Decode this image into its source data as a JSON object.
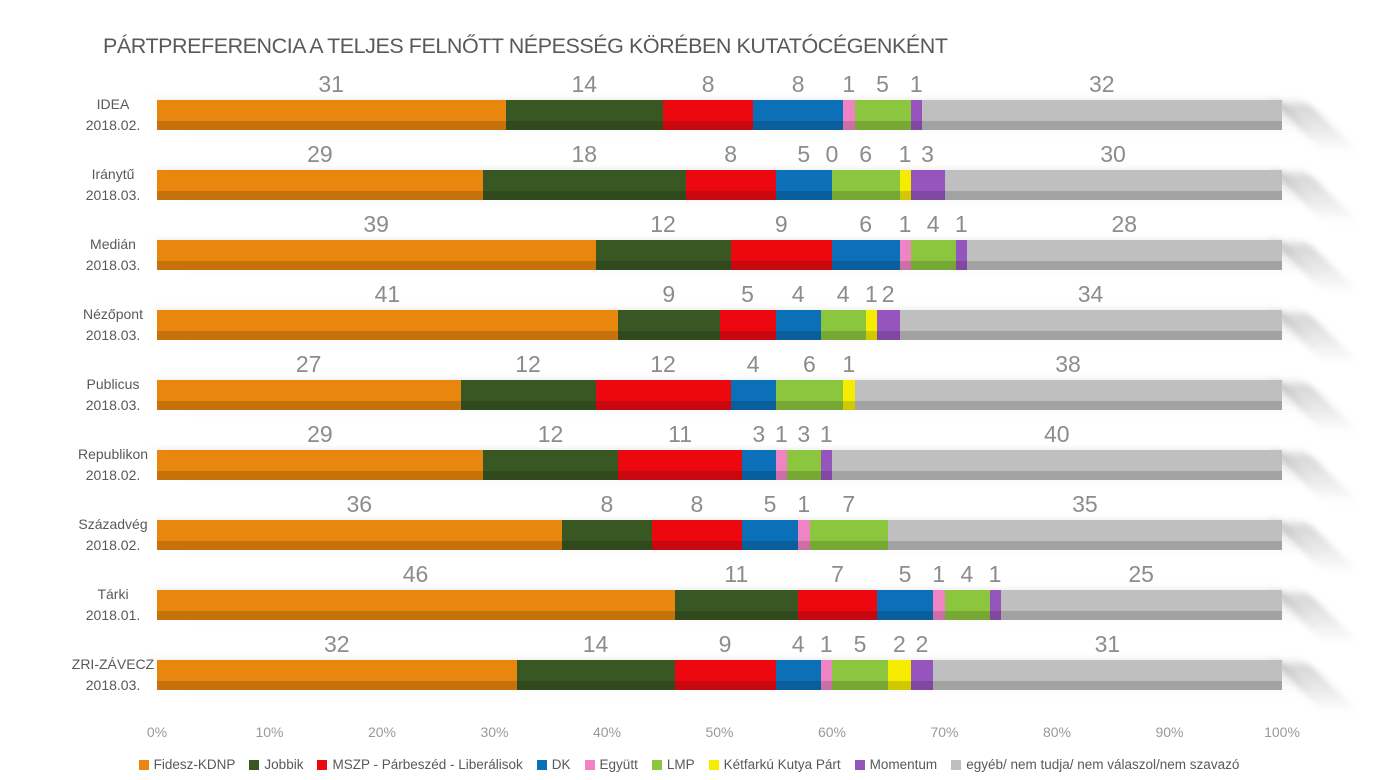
{
  "chart_data": {
    "type": "bar",
    "orientation": "horizontal",
    "stacked": true,
    "unit": "percent",
    "title": "PÁRTPREFERENCIA A TELJES FELNŐTT NÉPESSÉG KÖRÉBEN KUTATÓCÉGENKÉNT",
    "x_axis": {
      "min": 0,
      "max": 100,
      "tick_labels": [
        "0%",
        "10%",
        "20%",
        "30%",
        "40%",
        "50%",
        "60%",
        "70%",
        "80%",
        "90%",
        "100%"
      ],
      "gridlines": false
    },
    "categories": [
      {
        "name": "IDEA",
        "date": "2018.02."
      },
      {
        "name": "Iránytű",
        "date": "2018.03."
      },
      {
        "name": "Medián",
        "date": "2018.03."
      },
      {
        "name": "Nézőpont",
        "date": "2018.03."
      },
      {
        "name": "Publicus",
        "date": "2018.03."
      },
      {
        "name": "Republikon",
        "date": "2018.02."
      },
      {
        "name": "Századvég",
        "date": "2018.02."
      },
      {
        "name": "Tárki",
        "date": "2018.01."
      },
      {
        "name": "ZRI-ZÁVECZ",
        "date": "2018.03."
      }
    ],
    "series": [
      {
        "name": "Fidesz-KDNP",
        "color": "#e8860d",
        "values": [
          31,
          29,
          39,
          41,
          27,
          29,
          36,
          46,
          32
        ]
      },
      {
        "name": "Jobbik",
        "color": "#385723",
        "values": [
          14,
          18,
          12,
          9,
          12,
          12,
          8,
          11,
          14
        ]
      },
      {
        "name": "MSZP - Párbeszéd - Liberálisok",
        "color": "#ed0810",
        "values": [
          8,
          8,
          9,
          5,
          12,
          11,
          8,
          7,
          9
        ]
      },
      {
        "name": "DK",
        "color": "#0b70b8",
        "values": [
          8,
          5,
          6,
          4,
          4,
          3,
          5,
          5,
          4
        ]
      },
      {
        "name": "Együtt",
        "color": "#f083c3",
        "values": [
          1,
          0,
          1,
          0,
          0,
          1,
          1,
          1,
          1
        ]
      },
      {
        "name": "LMP",
        "color": "#8cc63f",
        "values": [
          5,
          6,
          4,
          4,
          6,
          3,
          7,
          4,
          5
        ]
      },
      {
        "name": "Kétfarkú Kutya Párt",
        "color": "#f6ec00",
        "values": [
          0,
          1,
          0,
          1,
          1,
          0,
          0,
          0,
          2
        ]
      },
      {
        "name": "Momentum",
        "color": "#9655bc",
        "values": [
          1,
          3,
          1,
          2,
          0,
          1,
          0,
          1,
          2
        ]
      },
      {
        "name": "egyéb/ nem tudja/ nem válaszol/nem szavazó",
        "color": "#bfbfbf",
        "values": [
          32,
          30,
          28,
          34,
          38,
          40,
          35,
          25,
          31
        ]
      }
    ],
    "zero_labels_shown": [
      {
        "category_index": 1,
        "series_index": 4,
        "label": "0"
      }
    ],
    "legend_position": "bottom"
  }
}
